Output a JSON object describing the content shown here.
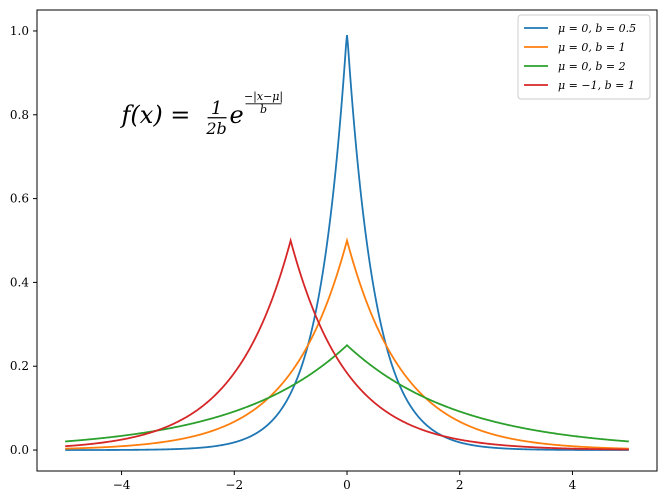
{
  "chart_data": {
    "type": "line",
    "title": "",
    "xlabel": "",
    "ylabel": "",
    "xlim": [
      -5.5,
      5.5
    ],
    "ylim": [
      -0.05,
      1.05
    ],
    "xticks": [
      -4,
      -2,
      0,
      2,
      4
    ],
    "xtick_labels": [
      "−4",
      "−2",
      "0",
      "2",
      "4"
    ],
    "yticks": [
      0.0,
      0.2,
      0.4,
      0.6,
      0.8,
      1.0
    ],
    "ytick_labels": [
      "0.0",
      "0.2",
      "0.4",
      "0.6",
      "0.8",
      "1.0"
    ],
    "grid": false,
    "legend_position": "top-right",
    "x_range": [
      -5,
      5
    ],
    "series": [
      {
        "name": "μ = 0, b = 0.5",
        "mu": 0,
        "b": 0.5,
        "color": "#1f77b4",
        "peak": 0.99
      },
      {
        "name": "μ = 0, b = 1",
        "mu": 0,
        "b": 1,
        "color": "#ff7f0e",
        "peak": 0.5
      },
      {
        "name": "μ = 0, b = 2",
        "mu": 0,
        "b": 2,
        "color": "#2ca02c",
        "peak": 0.25
      },
      {
        "name": "μ = −1, b = 1",
        "mu": -1,
        "b": 1,
        "color": "#d62728",
        "peak": 0.5
      }
    ],
    "annotations": [
      {
        "text_lhs": "f(x) = ",
        "numerator": "1",
        "denominator": "2b",
        "base": "e",
        "exponent_num": "−|x−μ|",
        "exponent_den": "b",
        "x": -4.0,
        "y": 0.8
      }
    ]
  }
}
